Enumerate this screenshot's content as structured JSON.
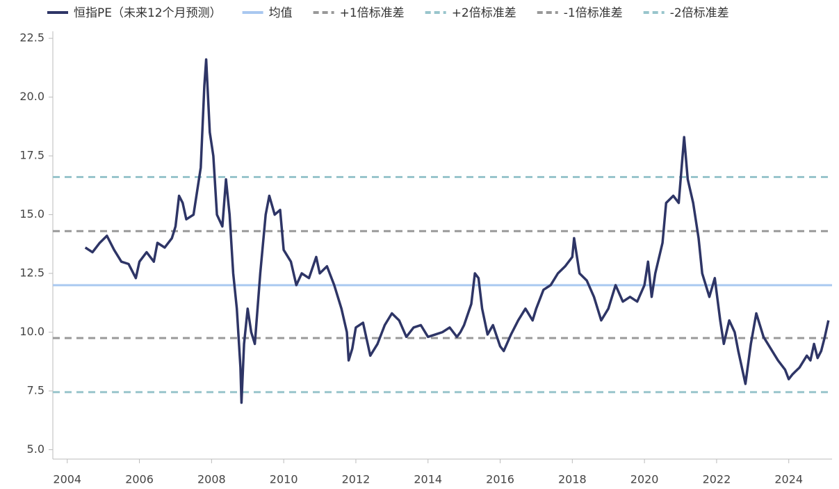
{
  "chart_data": {
    "type": "line",
    "x": [
      2004.5,
      2004.7,
      2004.9,
      2005.1,
      2005.3,
      2005.5,
      2005.7,
      2005.9,
      2006.0,
      2006.2,
      2006.4,
      2006.5,
      2006.7,
      2006.9,
      2007.0,
      2007.1,
      2007.2,
      2007.3,
      2007.5,
      2007.6,
      2007.7,
      2007.8,
      2007.85,
      2007.95,
      2008.05,
      2008.15,
      2008.3,
      2008.4,
      2008.5,
      2008.6,
      2008.7,
      2008.8,
      2008.83,
      2008.9,
      2009.0,
      2009.1,
      2009.2,
      2009.35,
      2009.5,
      2009.6,
      2009.75,
      2009.9,
      2010.0,
      2010.2,
      2010.35,
      2010.5,
      2010.7,
      2010.9,
      2011.0,
      2011.2,
      2011.4,
      2011.6,
      2011.75,
      2011.8,
      2011.9,
      2012.0,
      2012.2,
      2012.4,
      2012.6,
      2012.8,
      2013.0,
      2013.2,
      2013.4,
      2013.6,
      2013.8,
      2014.0,
      2014.2,
      2014.4,
      2014.6,
      2014.8,
      2014.9,
      2015.0,
      2015.2,
      2015.3,
      2015.4,
      2015.5,
      2015.65,
      2015.8,
      2016.0,
      2016.1,
      2016.3,
      2016.5,
      2016.7,
      2016.9,
      2017.0,
      2017.2,
      2017.4,
      2017.6,
      2017.8,
      2018.0,
      2018.05,
      2018.2,
      2018.4,
      2018.6,
      2018.8,
      2019.0,
      2019.2,
      2019.4,
      2019.6,
      2019.8,
      2020.0,
      2020.1,
      2020.2,
      2020.3,
      2020.5,
      2020.6,
      2020.8,
      2020.95,
      2021.1,
      2021.2,
      2021.35,
      2021.5,
      2021.6,
      2021.8,
      2021.95,
      2022.1,
      2022.2,
      2022.35,
      2022.5,
      2022.6,
      2022.8,
      2022.95,
      2023.1,
      2023.3,
      2023.5,
      2023.7,
      2023.9,
      2024.0,
      2024.1,
      2024.3,
      2024.5,
      2024.6,
      2024.7,
      2024.8,
      2024.9,
      2025.0,
      2025.1
    ],
    "series": [
      {
        "name": "恒指PE（未来12个月预测）",
        "color": "#2e3566",
        "values": [
          13.6,
          13.4,
          13.8,
          14.1,
          13.5,
          13.0,
          12.9,
          12.3,
          13.0,
          13.4,
          13.0,
          13.8,
          13.6,
          14.0,
          14.5,
          15.8,
          15.5,
          14.8,
          15.0,
          16.0,
          17.0,
          20.5,
          21.6,
          18.5,
          17.5,
          15.0,
          14.5,
          16.5,
          15.0,
          12.5,
          11.0,
          8.5,
          7.0,
          9.5,
          11.0,
          10.0,
          9.5,
          12.5,
          15.0,
          15.8,
          15.0,
          15.2,
          13.5,
          13.0,
          12.0,
          12.5,
          12.3,
          13.2,
          12.5,
          12.8,
          12.0,
          11.0,
          10.0,
          8.8,
          9.3,
          10.2,
          10.4,
          9.0,
          9.5,
          10.3,
          10.8,
          10.5,
          9.8,
          10.2,
          10.3,
          9.8,
          9.9,
          10.0,
          10.2,
          9.8,
          10.0,
          10.3,
          11.2,
          12.5,
          12.3,
          11.0,
          9.9,
          10.3,
          9.4,
          9.2,
          9.9,
          10.5,
          11.0,
          10.5,
          11.0,
          11.8,
          12.0,
          12.5,
          12.8,
          13.2,
          14.0,
          12.5,
          12.2,
          11.5,
          10.5,
          11.0,
          12.0,
          11.3,
          11.5,
          11.3,
          12.0,
          13.0,
          11.5,
          12.5,
          13.8,
          15.5,
          15.8,
          15.5,
          18.3,
          16.5,
          15.5,
          14.0,
          12.5,
          11.5,
          12.3,
          10.5,
          9.5,
          10.5,
          10.0,
          9.2,
          7.8,
          9.5,
          10.8,
          9.8,
          9.3,
          8.8,
          8.4,
          8.0,
          8.2,
          8.5,
          9.0,
          8.8,
          9.5,
          8.9,
          9.2,
          9.8,
          10.5
        ]
      }
    ],
    "reference_lines": [
      {
        "name": "均值",
        "color": "#a9c8f0",
        "value": 12.0,
        "style": "solid"
      },
      {
        "name": "+1倍标准差",
        "color": "#999999",
        "value": 14.3,
        "style": "dashed"
      },
      {
        "name": "+2倍标准差",
        "color": "#99c5cc",
        "value": 16.6,
        "style": "dashed"
      },
      {
        "name": "-1倍标准差",
        "color": "#999999",
        "value": 9.75,
        "style": "dashed"
      },
      {
        "name": "-2倍标准差",
        "color": "#99c5cc",
        "value": 7.45,
        "style": "dashed"
      }
    ],
    "xlim": [
      2003.6,
      2025.2
    ],
    "xticks": [
      2004,
      2006,
      2008,
      2010,
      2012,
      2014,
      2016,
      2018,
      2020,
      2022,
      2024
    ],
    "ylim": [
      4.6,
      22.8
    ],
    "yticks": [
      {
        "value": 5,
        "label": "5.0"
      },
      7.5,
      {
        "value": 10,
        "label": "10.0"
      },
      12.5,
      {
        "value": 15,
        "label": "15.0"
      },
      17.5,
      {
        "value": 20,
        "label": "20.0"
      },
      22.5
    ]
  }
}
